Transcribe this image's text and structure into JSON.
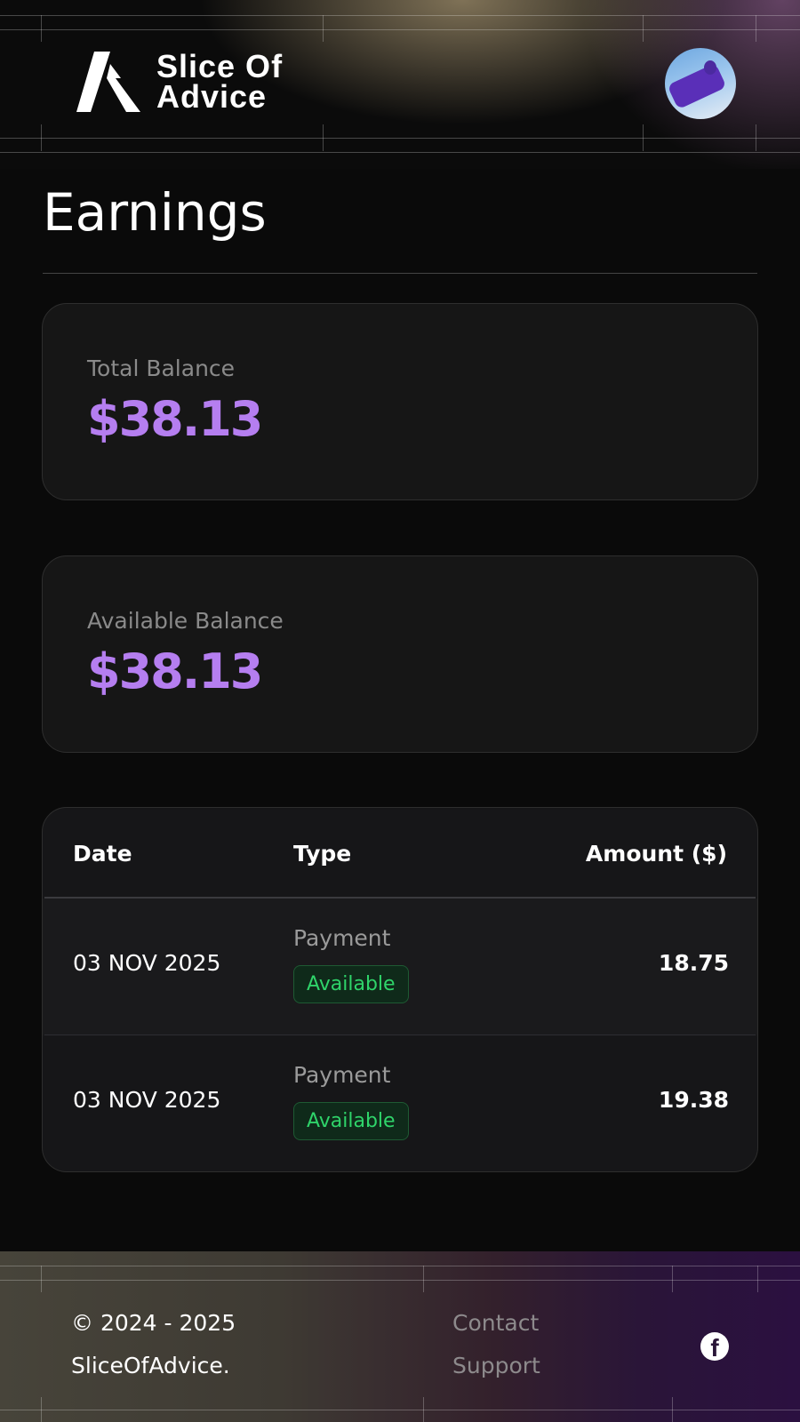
{
  "header": {
    "logo_text_line1": "Slice Of",
    "logo_text_line2": "Advice",
    "avatar_alt": "user avatar"
  },
  "page": {
    "title": "Earnings"
  },
  "cards": [
    {
      "label": "Total Balance",
      "value": "$38.13"
    },
    {
      "label": "Available Balance",
      "value": "$38.13"
    }
  ],
  "table": {
    "headers": {
      "date": "Date",
      "type": "Type",
      "amount": "Amount ($)"
    },
    "rows": [
      {
        "date": "03 NOV 2025",
        "type": "Payment",
        "status": "Available",
        "amount": "18.75"
      },
      {
        "date": "03 NOV 2025",
        "type": "Payment",
        "status": "Available",
        "amount": "19.38"
      }
    ]
  },
  "footer": {
    "copyright": "© 2024 - 2025",
    "brand": "SliceOfAdvice.",
    "contact": "Contact",
    "support": "Support",
    "social_icon": "facebook-icon"
  },
  "colors": {
    "accent": "#b57ef0",
    "status_green": "#2fd46a",
    "background": "#0a0a0a"
  }
}
